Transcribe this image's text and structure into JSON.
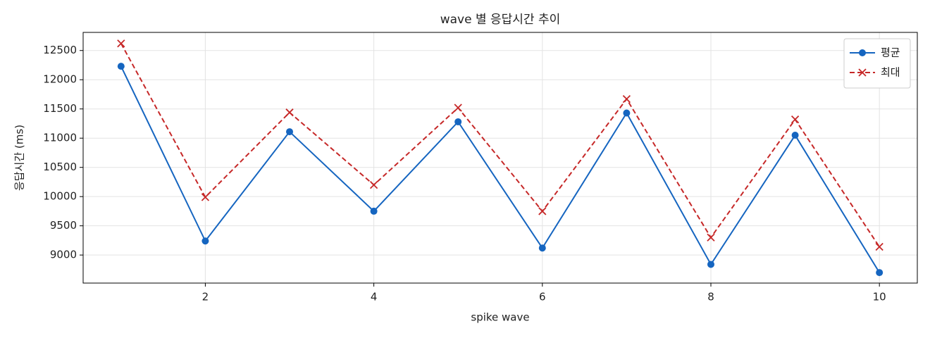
{
  "chart_data": {
    "type": "line",
    "title": "wave 별 응답시간 추이",
    "x_label": "spike wave",
    "y_label": "응답시간 (ms)",
    "x": [
      1,
      2,
      3,
      4,
      5,
      6,
      7,
      8,
      9,
      10
    ],
    "series": [
      {
        "name": "평균",
        "color": "#1565c0",
        "marker": "circle",
        "dash": "solid",
        "values": [
          12230,
          9240,
          11110,
          9750,
          11280,
          9120,
          11430,
          8840,
          11050,
          8700
        ]
      },
      {
        "name": "최대",
        "color": "#c62828",
        "marker": "x",
        "dash": "dashed",
        "values": [
          12620,
          9990,
          11440,
          10200,
          11520,
          9750,
          11670,
          9300,
          11320,
          9140
        ]
      }
    ],
    "xlim": [
      0.55,
      10.45
    ],
    "xticks": [
      2,
      4,
      6,
      8,
      10
    ],
    "ylim": [
      8520,
      12810
    ],
    "yticks": [
      9000,
      9500,
      10000,
      10500,
      11000,
      11500,
      12000,
      12500
    ],
    "grid": true,
    "legend": "upper right"
  }
}
